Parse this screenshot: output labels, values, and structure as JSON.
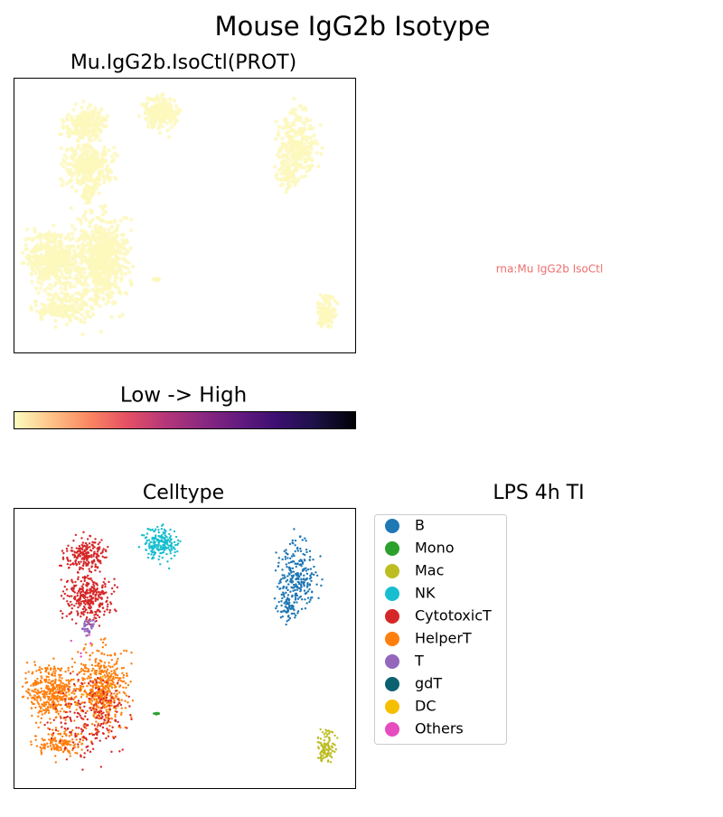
{
  "title": "Mouse IgG2b Isotype",
  "expression_panel": {
    "title": "Mu.IgG2b.IsoCtl(PROT)",
    "point_color": "#fcf7bb"
  },
  "annotation": "rna:Mu IgG2b IsoCtl",
  "colorbar": {
    "label": "Low  ->  High"
  },
  "celltype_panel": {
    "title": "Celltype"
  },
  "legend": {
    "title": "LPS 4h TI",
    "items": [
      {
        "label": "B",
        "color": "#1f77b4"
      },
      {
        "label": "Mono",
        "color": "#2ca02c"
      },
      {
        "label": "Mac",
        "color": "#bcbd22"
      },
      {
        "label": "NK",
        "color": "#17becf"
      },
      {
        "label": "CytotoxicT",
        "color": "#d62728"
      },
      {
        "label": "HelperT",
        "color": "#ff7f0e"
      },
      {
        "label": "T",
        "color": "#9467bd"
      },
      {
        "label": "gdT",
        "color": "#0b6170"
      },
      {
        "label": "DC",
        "color": "#f5bf00"
      },
      {
        "label": "Others",
        "color": "#e64bbf"
      }
    ]
  }
}
